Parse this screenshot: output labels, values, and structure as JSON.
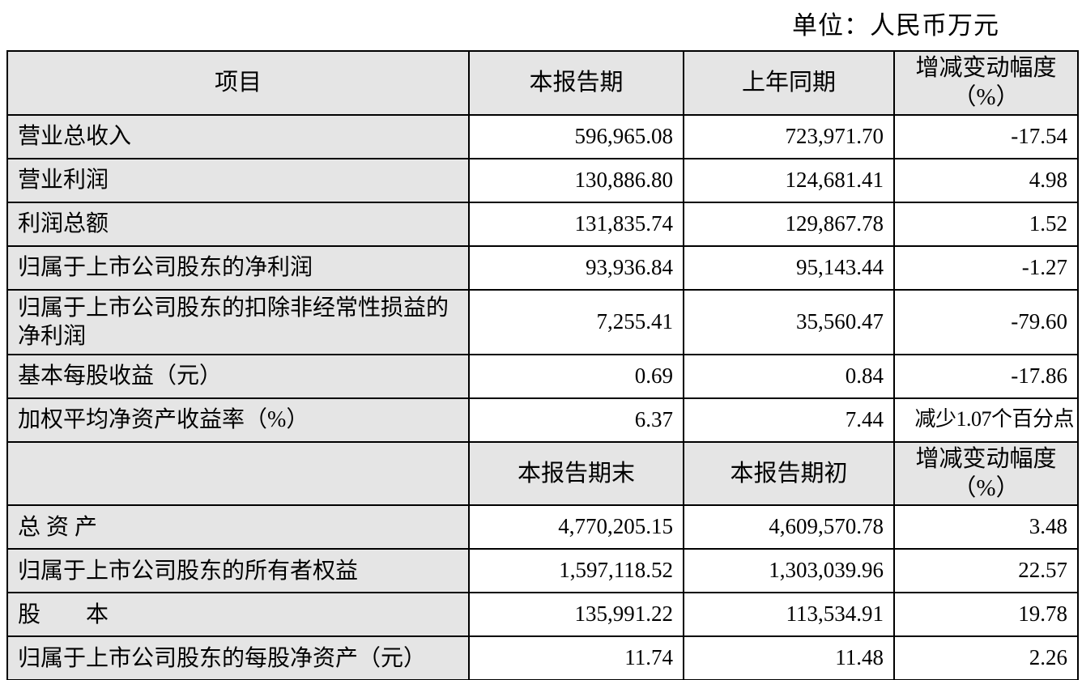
{
  "unit_label": "单位：人民币万元",
  "table": {
    "header1": {
      "item": "项目",
      "current": "本报告期",
      "prior": "上年同期",
      "change": "增减变动幅度（%）"
    },
    "section1_rows": [
      {
        "label": "营业总收入",
        "current": "596,965.08",
        "prior": "723,971.70",
        "change": "-17.54"
      },
      {
        "label": "营业利润",
        "current": "130,886.80",
        "prior": "124,681.41",
        "change": "4.98"
      },
      {
        "label": "利润总额",
        "current": "131,835.74",
        "prior": "129,867.78",
        "change": "1.52"
      },
      {
        "label": "归属于上市公司股东的净利润",
        "current": "93,936.84",
        "prior": "95,143.44",
        "change": "-1.27"
      },
      {
        "label": "归属于上市公司股东的扣除非经常性损益的净利润",
        "current": "7,255.41",
        "prior": "35,560.47",
        "change": "-79.60"
      },
      {
        "label": "基本每股收益（元）",
        "current": "0.69",
        "prior": "0.84",
        "change": "-17.86"
      },
      {
        "label": "加权平均净资产收益率（%）",
        "current": "6.37",
        "prior": "7.44",
        "change": "减少1.07个百分点"
      }
    ],
    "header2": {
      "item": "",
      "current": "本报告期末",
      "prior": "本报告期初",
      "change": "增减变动幅度（%）"
    },
    "section2_rows": [
      {
        "label": "总 资 产",
        "current": "4,770,205.15",
        "prior": "4,609,570.78",
        "change": "3.48"
      },
      {
        "label": "归属于上市公司股东的所有者权益",
        "current": "1,597,118.52",
        "prior": "1,303,039.96",
        "change": "22.57"
      },
      {
        "label": "股　　本",
        "current": "135,991.22",
        "prior": "113,534.91",
        "change": "19.78"
      },
      {
        "label": "归属于上市公司股东的每股净资产（元）",
        "current": "11.74",
        "prior": "11.48",
        "change": "2.26"
      }
    ]
  }
}
